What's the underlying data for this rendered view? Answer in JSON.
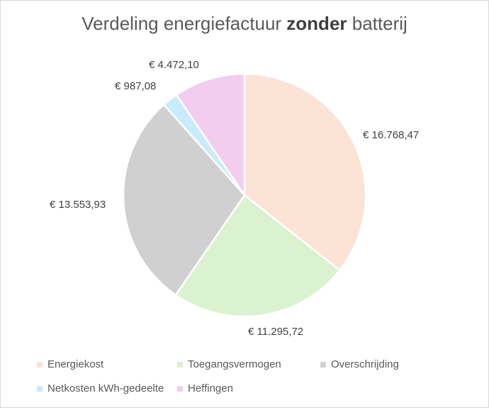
{
  "chart_data": {
    "type": "pie",
    "title_prefix": "Verdeling energiefactuur ",
    "title_bold": "zonder",
    "title_suffix": " batterij",
    "slices": [
      {
        "name": "Energiekost",
        "value": 16768.47,
        "label": "€ 16.768,47",
        "color": "#fbe3d6"
      },
      {
        "name": "Toegangsvermogen",
        "value": 11295.72,
        "label": "€ 11.295,72",
        "color": "#daf2d0"
      },
      {
        "name": "Overschrijding",
        "value": 13553.93,
        "label": "€ 13.553,93",
        "color": "#d0d0d0"
      },
      {
        "name": "Netkosten kWh-gedeelte",
        "value": 987.08,
        "label": "€ 987,08",
        "color": "#c9ecfa"
      },
      {
        "name": "Heffingen",
        "value": 4472.1,
        "label": "€ 4.472,10",
        "color": "#f2cdf0"
      }
    ],
    "legend_position": "bottom"
  }
}
